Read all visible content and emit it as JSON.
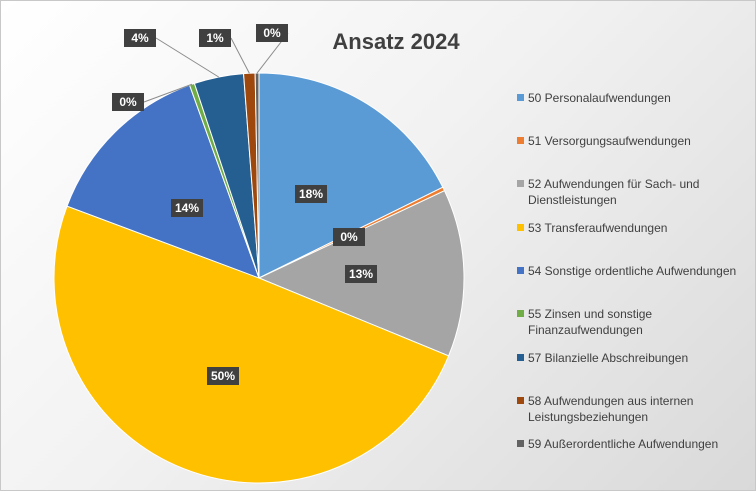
{
  "chart_data": {
    "type": "pie",
    "title": "Ansatz 2024",
    "categories": [
      "50 Personalaufwendungen",
      "51 Versorgungsaufwendungen",
      "52 Aufwendungen für Sach- und Dienstleistungen",
      "53 Transferaufwendungen",
      "54 Sonstige ordentliche Aufwendungen",
      "55 Zinsen und sonstige Finanzaufwendungen",
      "57 Bilanzielle Abschreibungen",
      "58 Aufwendungen aus internen Leistungsbeziehungen",
      "59 Außerordentliche Aufwendungen"
    ],
    "values": [
      17.7,
      0.3,
      13.2,
      49.5,
      13.8,
      0.4,
      3.9,
      0.9,
      0.3
    ],
    "value_labels": [
      "18%",
      "0%",
      "13%",
      "50%",
      "14%",
      "0%",
      "4%",
      "1%",
      "0%"
    ],
    "colors": [
      "#5b9bd5",
      "#ed7d31",
      "#a5a5a5",
      "#ffc000",
      "#4472c4",
      "#70ad47",
      "#255e91",
      "#9e480e",
      "#636363"
    ],
    "legend": "right"
  }
}
